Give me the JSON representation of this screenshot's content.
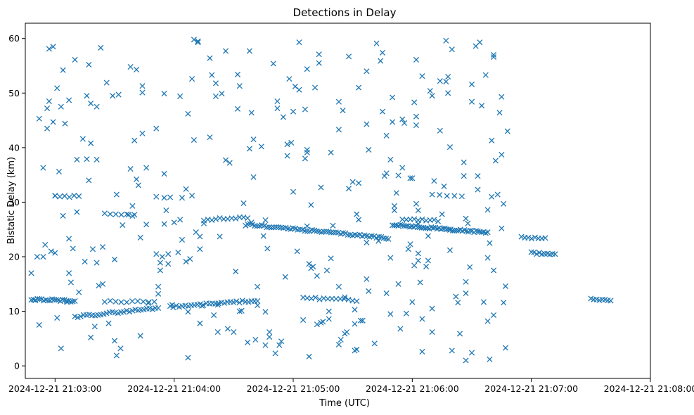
{
  "chart_data": {
    "type": "scatter",
    "title": "Detections in Delay",
    "xlabel": "Time (UTC)",
    "ylabel": "Bistatic Delay (km)",
    "x_start": "2024-12-21 21:02:45",
    "x_end": "2024-12-21 21:08:00",
    "ylim": [
      -2.3,
      62.8
    ],
    "x_ticks": [
      "2024-12-21 21:03:00",
      "2024-12-21 21:04:00",
      "2024-12-21 21:05:00",
      "2024-12-21 21:06:00",
      "2024-12-21 21:07:00",
      "2024-12-21 21:08:00"
    ],
    "y_ticks": [
      0,
      10,
      20,
      30,
      40,
      50,
      60
    ],
    "marker": "x",
    "color": "#1f77b4",
    "grid": false,
    "tracks": [
      {
        "t_start": "2024-12-21 21:02:48",
        "t_end": "2024-12-21 21:03:10",
        "delay_start": 12.2,
        "delay_end": 11.9,
        "points": 22
      },
      {
        "t_start": "2024-12-21 21:03:10",
        "t_end": "2024-12-21 21:03:52",
        "delay_start": 9.0,
        "delay_end": 10.6,
        "points": 30
      },
      {
        "t_start": "2024-12-21 21:03:25",
        "t_end": "2024-12-21 21:03:50",
        "delay_start": 11.8,
        "delay_end": 11.7,
        "points": 10
      },
      {
        "t_start": "2024-12-21 21:03:58",
        "t_end": "2024-12-21 21:04:42",
        "delay_start": 10.8,
        "delay_end": 12.0,
        "points": 30
      },
      {
        "t_start": "2024-12-21 21:04:15",
        "t_end": "2024-12-21 21:04:37",
        "delay_start": 26.8,
        "delay_end": 27.2,
        "points": 12
      },
      {
        "t_start": "2024-12-21 21:04:37",
        "t_end": "2024-12-21 21:05:48",
        "delay_start": 25.9,
        "delay_end": 23.4,
        "points": 60
      },
      {
        "t_start": "2024-12-21 21:05:05",
        "t_end": "2024-12-21 21:05:32",
        "delay_start": 12.5,
        "delay_end": 12.0,
        "points": 14
      },
      {
        "t_start": "2024-12-21 21:05:50",
        "t_end": "2024-12-21 21:06:38",
        "delay_start": 25.9,
        "delay_end": 24.4,
        "points": 50
      },
      {
        "t_start": "2024-12-21 21:05:55",
        "t_end": "2024-12-21 21:06:13",
        "delay_start": 27.0,
        "delay_end": 26.6,
        "points": 10
      },
      {
        "t_start": "2024-12-21 21:07:00",
        "t_end": "2024-12-21 21:07:12",
        "delay_start": 20.7,
        "delay_end": 20.5,
        "points": 10
      },
      {
        "t_start": "2024-12-21 21:06:55",
        "t_end": "2024-12-21 21:07:07",
        "delay_start": 23.5,
        "delay_end": 23.3,
        "points": 8
      },
      {
        "t_start": "2024-12-21 21:07:30",
        "t_end": "2024-12-21 21:07:40",
        "delay_start": 12.2,
        "delay_end": 12.0,
        "points": 8
      },
      {
        "t_start": "2024-12-21 21:03:25",
        "t_end": "2024-12-21 21:03:39",
        "delay_start": 27.9,
        "delay_end": 27.6,
        "points": 6
      },
      {
        "t_start": "2024-12-21 21:03:00",
        "t_end": "2024-12-21 21:03:12",
        "delay_start": 31.2,
        "delay_end": 31.0,
        "points": 6
      },
      {
        "t_start": "2024-12-21 21:06:10",
        "t_end": "2024-12-21 21:06:25",
        "delay_start": 31.4,
        "delay_end": 31.1,
        "points": 5
      }
    ],
    "scatter": [
      [
        -12,
        17
      ],
      [
        -10,
        12
      ],
      [
        -9,
        20
      ],
      [
        -8,
        7.5
      ],
      [
        -8,
        45.3
      ],
      [
        -6,
        36.3
      ],
      [
        -6,
        20
      ],
      [
        -5,
        22.2
      ],
      [
        -4,
        43.5
      ],
      [
        -4,
        47.2
      ],
      [
        -3,
        58.1
      ],
      [
        -3,
        48.5
      ],
      [
        -2,
        21
      ],
      [
        -1,
        58.5
      ],
      [
        -1,
        44.7
      ],
      [
        0,
        31.2
      ],
      [
        0,
        20.7
      ],
      [
        1,
        50.9
      ],
      [
        1,
        8.8
      ],
      [
        2,
        35.6
      ],
      [
        3,
        47.5
      ],
      [
        3,
        3.2
      ],
      [
        4,
        54.2
      ],
      [
        4,
        27.5
      ],
      [
        5,
        44.4
      ],
      [
        6,
        11.7
      ],
      [
        7,
        48.7
      ],
      [
        7,
        23.3
      ],
      [
        7,
        17
      ],
      [
        8,
        15.3
      ],
      [
        9,
        21.5
      ],
      [
        10,
        56.1
      ],
      [
        11,
        28.2
      ],
      [
        11,
        37.8
      ],
      [
        12,
        13.5
      ],
      [
        14,
        41.6
      ],
      [
        15,
        19.1
      ],
      [
        16,
        49.5
      ],
      [
        16,
        37.9
      ],
      [
        17,
        55.2
      ],
      [
        17,
        34
      ],
      [
        18,
        48.1
      ],
      [
        18,
        40.8
      ],
      [
        18,
        5.2
      ],
      [
        19,
        21.4
      ],
      [
        20,
        7.2
      ],
      [
        21,
        47.5
      ],
      [
        21,
        37.8
      ],
      [
        21,
        18.9
      ],
      [
        22,
        14.7
      ],
      [
        23,
        58.3
      ],
      [
        24,
        21.8
      ],
      [
        24,
        15
      ],
      [
        26,
        51.9
      ],
      [
        27,
        7.8
      ],
      [
        29,
        49.5
      ],
      [
        30,
        19.5
      ],
      [
        30,
        4.6
      ],
      [
        31,
        31.4
      ],
      [
        31,
        1.9
      ],
      [
        32,
        49.7
      ],
      [
        33,
        3.2
      ],
      [
        34,
        25.8
      ],
      [
        37,
        27.7
      ],
      [
        38,
        36.1
      ],
      [
        38,
        54.8
      ],
      [
        39,
        29.3
      ],
      [
        40,
        41.3
      ],
      [
        40,
        27.7
      ],
      [
        41,
        54.3
      ],
      [
        41,
        34.2
      ],
      [
        42,
        33.1
      ],
      [
        43,
        5.5
      ],
      [
        43,
        23.5
      ],
      [
        44,
        51.3
      ],
      [
        44,
        50.1
      ],
      [
        44,
        42.6
      ],
      [
        46,
        25.9
      ],
      [
        46,
        36.3
      ],
      [
        47,
        11.5
      ],
      [
        51,
        43.5
      ],
      [
        51,
        31
      ],
      [
        51,
        20.5
      ],
      [
        52,
        14.5
      ],
      [
        52,
        13.2
      ],
      [
        53,
        17.5
      ],
      [
        53,
        18.9
      ],
      [
        54,
        20
      ],
      [
        55,
        30.8
      ],
      [
        55,
        35.2
      ],
      [
        55,
        26
      ],
      [
        55,
        49.9
      ],
      [
        56,
        28.5
      ],
      [
        57,
        20.5
      ],
      [
        57,
        18.7
      ],
      [
        58,
        30.9
      ],
      [
        59,
        11.2
      ],
      [
        60,
        26.3
      ],
      [
        62,
        20.8
      ],
      [
        63,
        49.4
      ],
      [
        63,
        26.8
      ],
      [
        64,
        30.8
      ],
      [
        64,
        23.1
      ],
      [
        66,
        19.1
      ],
      [
        66,
        32.4
      ],
      [
        67,
        46.2
      ],
      [
        67,
        9.9
      ],
      [
        67,
        1.5
      ],
      [
        68,
        19.6
      ],
      [
        69,
        31.2
      ],
      [
        69,
        52.6
      ],
      [
        70,
        41.4
      ],
      [
        70,
        59.8
      ],
      [
        71,
        24.5
      ],
      [
        72,
        59.3
      ],
      [
        72,
        59.5
      ],
      [
        73,
        7.8
      ],
      [
        73,
        21.4
      ],
      [
        73,
        23.7
      ],
      [
        74,
        11
      ],
      [
        75,
        26.1
      ],
      [
        78,
        41.9
      ],
      [
        78,
        56.4
      ],
      [
        79,
        53.3
      ],
      [
        80,
        9.3
      ],
      [
        81,
        49.4
      ],
      [
        81,
        51.8
      ],
      [
        82,
        11.2
      ],
      [
        82,
        6.2
      ],
      [
        83,
        23.7
      ],
      [
        84,
        49.9
      ],
      [
        86,
        57.7
      ],
      [
        86,
        37.7
      ],
      [
        87,
        6.8
      ],
      [
        88,
        37.2
      ],
      [
        90,
        6.2
      ],
      [
        91,
        17.3
      ],
      [
        92,
        53.4
      ],
      [
        92,
        47.1
      ],
      [
        93,
        51.3
      ],
      [
        93,
        10
      ],
      [
        94,
        10.1
      ],
      [
        95,
        29.8
      ],
      [
        96,
        25.7
      ],
      [
        97,
        4.3
      ],
      [
        98,
        57.7
      ],
      [
        98,
        39.8
      ],
      [
        99,
        46.4
      ],
      [
        99,
        26.3
      ],
      [
        100,
        41.5
      ],
      [
        100,
        34.6
      ],
      [
        101,
        4.8
      ],
      [
        102,
        14.5
      ],
      [
        102,
        11.1
      ],
      [
        104,
        40.2
      ],
      [
        105,
        23.8
      ],
      [
        106,
        3.8
      ],
      [
        106,
        26.7
      ],
      [
        106,
        9.9
      ],
      [
        107,
        21.5
      ],
      [
        108,
        5.3
      ],
      [
        108,
        6.2
      ],
      [
        110,
        55.4
      ],
      [
        111,
        2.3
      ],
      [
        112,
        47.2
      ],
      [
        112,
        48.5
      ],
      [
        113,
        3.8
      ],
      [
        114,
        4.5
      ],
      [
        115,
        45.6
      ],
      [
        116,
        16.3
      ],
      [
        117,
        40.6
      ],
      [
        117,
        38.5
      ],
      [
        118,
        52.6
      ],
      [
        119,
        40.9
      ],
      [
        120,
        46.6
      ],
      [
        120,
        31.9
      ],
      [
        121,
        51.2
      ],
      [
        122,
        21
      ],
      [
        123,
        50.6
      ],
      [
        123,
        59.3
      ],
      [
        125,
        8.4
      ],
      [
        126,
        47
      ],
      [
        126,
        38
      ],
      [
        127,
        54.4
      ],
      [
        127,
        39.6
      ],
      [
        127,
        39.1
      ],
      [
        127,
        25.6
      ],
      [
        128,
        1.7
      ],
      [
        128,
        18.7
      ],
      [
        129,
        29.5
      ],
      [
        129,
        17.9
      ],
      [
        130,
        18.2
      ],
      [
        131,
        51
      ],
      [
        132,
        16.5
      ],
      [
        132,
        7.6
      ],
      [
        133,
        57.1
      ],
      [
        133,
        55.5
      ],
      [
        134,
        7.9
      ],
      [
        134,
        32.7
      ],
      [
        135,
        8.1
      ],
      [
        137,
        17.5
      ],
      [
        138,
        10
      ],
      [
        138,
        8.6
      ],
      [
        139,
        19.7
      ],
      [
        139,
        39.1
      ],
      [
        140,
        25.7
      ],
      [
        143,
        3.9
      ],
      [
        143,
        43.3
      ],
      [
        143,
        48.4
      ],
      [
        143,
        14.5
      ],
      [
        144,
        4.8
      ],
      [
        145,
        46.8
      ],
      [
        146,
        5.9
      ],
      [
        146,
        12.6
      ],
      [
        147,
        6.2
      ],
      [
        148,
        32.5
      ],
      [
        148,
        56.7
      ],
      [
        150,
        33.7
      ],
      [
        151,
        2.8
      ],
      [
        151,
        7.7
      ],
      [
        151,
        10.3
      ],
      [
        152,
        27.8
      ],
      [
        152,
        3
      ],
      [
        153,
        26.8
      ],
      [
        153,
        33.5
      ],
      [
        153,
        51
      ],
      [
        154,
        8.3
      ],
      [
        155,
        8.3
      ],
      [
        157,
        44.3
      ],
      [
        157,
        22.6
      ],
      [
        157,
        15.9
      ],
      [
        157,
        54
      ],
      [
        158,
        39.6
      ],
      [
        158,
        13.7
      ],
      [
        161,
        4.1
      ],
      [
        162,
        59.1
      ],
      [
        163,
        22.9
      ],
      [
        164,
        55.9
      ],
      [
        165,
        57.4
      ],
      [
        165,
        46.6
      ],
      [
        166,
        34.8
      ],
      [
        167,
        35.3
      ],
      [
        167,
        42.2
      ],
      [
        167,
        13.3
      ],
      [
        169,
        9.5
      ],
      [
        169,
        37.8
      ],
      [
        169,
        19.8
      ],
      [
        170,
        49.2
      ],
      [
        170,
        44.7
      ],
      [
        171,
        29.3
      ],
      [
        171,
        28.5
      ],
      [
        172,
        31.7
      ],
      [
        173,
        15
      ],
      [
        173,
        34.9
      ],
      [
        174,
        6.8
      ],
      [
        175,
        45.2
      ],
      [
        175,
        36.3
      ],
      [
        176,
        44.5
      ],
      [
        177,
        9.6
      ],
      [
        178,
        21.4
      ],
      [
        179,
        22.3
      ],
      [
        179,
        34.4
      ],
      [
        180,
        34.4
      ],
      [
        180,
        11.7
      ],
      [
        181,
        48.3
      ],
      [
        181,
        18.4
      ],
      [
        182,
        56.1
      ],
      [
        182,
        45.7
      ],
      [
        182,
        44.1
      ],
      [
        182,
        29.7
      ],
      [
        183,
        28.5
      ],
      [
        183,
        26
      ],
      [
        183,
        20.6
      ],
      [
        183,
        19.3
      ],
      [
        184,
        15.3
      ],
      [
        185,
        2.6
      ],
      [
        185,
        8.6
      ],
      [
        185,
        53.1
      ],
      [
        187,
        18.2
      ],
      [
        188,
        23.8
      ],
      [
        188,
        19.3
      ],
      [
        189,
        50.4
      ],
      [
        190,
        49.5
      ],
      [
        190,
        10.5
      ],
      [
        190,
        6.2
      ],
      [
        191,
        33.9
      ],
      [
        194,
        43.1
      ],
      [
        194,
        52.2
      ],
      [
        195,
        27.8
      ],
      [
        196,
        32.9
      ],
      [
        197,
        52.1
      ],
      [
        197,
        59.6
      ],
      [
        198,
        53
      ],
      [
        198,
        50
      ],
      [
        199,
        40.1
      ],
      [
        199,
        24.9
      ],
      [
        199,
        21.2
      ],
      [
        200,
        58
      ],
      [
        200,
        2.8
      ],
      [
        202,
        12.7
      ],
      [
        203,
        11.6
      ],
      [
        204,
        5.9
      ],
      [
        206,
        34.8
      ],
      [
        206,
        37.3
      ],
      [
        207,
        27
      ],
      [
        207,
        15.4
      ],
      [
        207,
        13.3
      ],
      [
        207,
        1
      ],
      [
        208,
        26.1
      ],
      [
        209,
        18.1
      ],
      [
        210,
        51.6
      ],
      [
        210,
        48.4
      ],
      [
        210,
        2.4
      ],
      [
        212,
        58.6
      ],
      [
        213,
        32.3
      ],
      [
        213,
        34.8
      ],
      [
        214,
        59.3
      ],
      [
        215,
        47.7
      ],
      [
        216,
        11.7
      ],
      [
        217,
        53.3
      ],
      [
        218,
        19.8
      ],
      [
        218,
        28.6
      ],
      [
        218,
        8.2
      ],
      [
        219,
        1.2
      ],
      [
        219,
        22.5
      ],
      [
        220,
        41.3
      ],
      [
        220,
        31
      ],
      [
        221,
        9.3
      ],
      [
        221,
        17.5
      ],
      [
        221,
        57
      ],
      [
        221,
        56.6
      ],
      [
        222,
        37.6
      ],
      [
        223,
        31.4
      ],
      [
        224,
        46.4
      ],
      [
        225,
        49.3
      ],
      [
        225,
        38.7
      ],
      [
        225,
        25.2
      ],
      [
        226,
        11.6
      ],
      [
        226,
        29.7
      ],
      [
        227,
        14.6
      ],
      [
        227,
        3.3
      ],
      [
        228,
        43
      ]
    ]
  }
}
